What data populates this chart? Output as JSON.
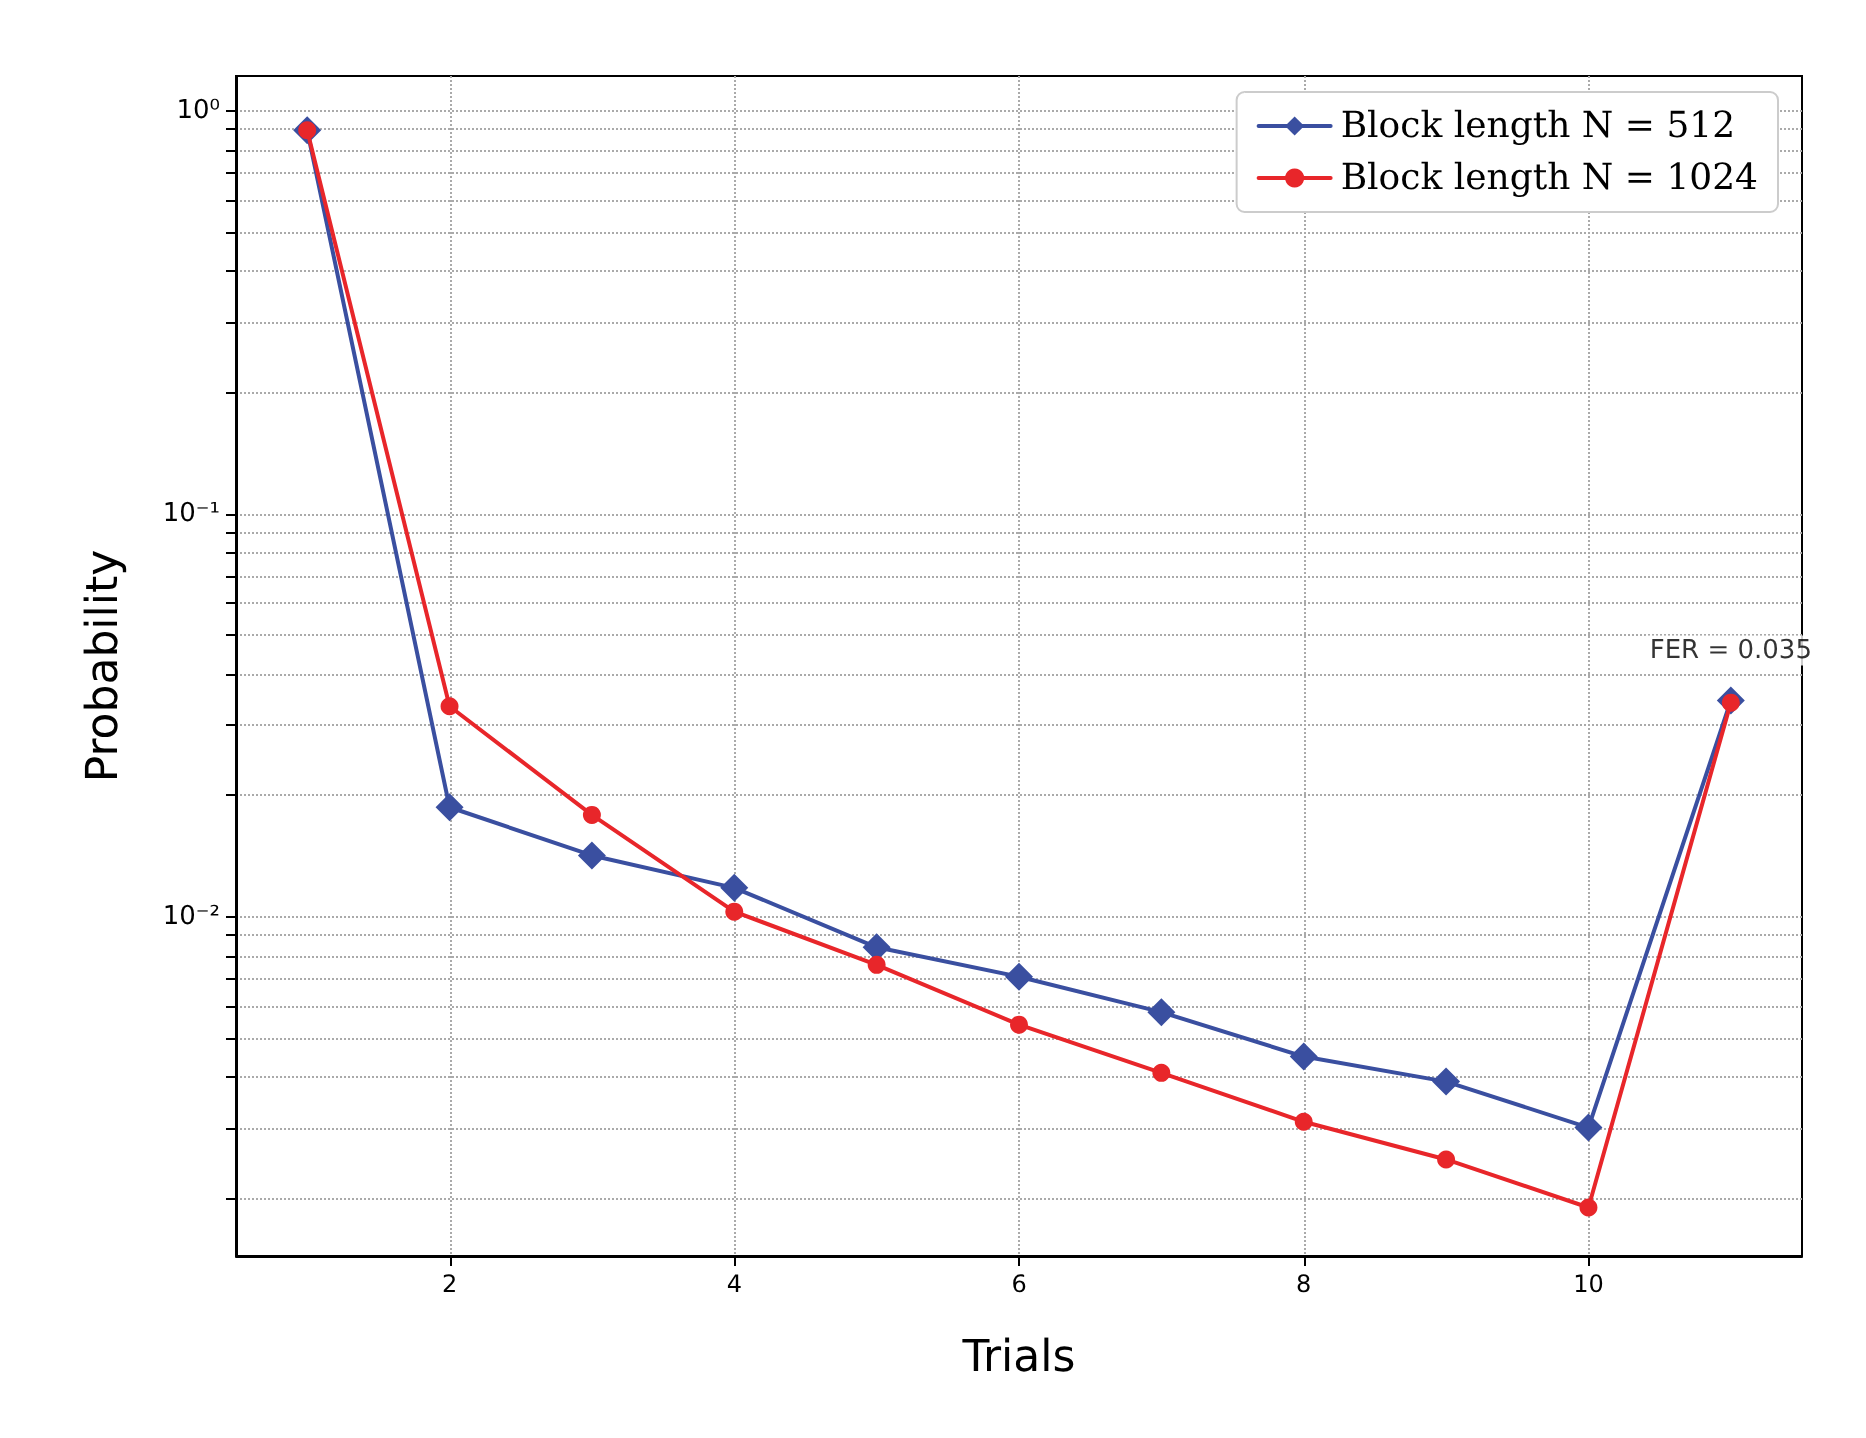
{
  "chart_data": {
    "type": "line",
    "xlabel": "Trials",
    "ylabel": "Probability",
    "log": "y",
    "grid": true,
    "legend": "top right",
    "line_style": "solid",
    "x": [
      1,
      2,
      3,
      4,
      5,
      6,
      7,
      8,
      9,
      10,
      11
    ],
    "xlim": [
      0.5,
      11.5
    ],
    "xticks": [
      2,
      4,
      6,
      8,
      10
    ],
    "ylim": [
      0.00144,
      1.22
    ],
    "yticks": [
      {
        "value": 0.002,
        "label": null
      },
      {
        "value": 0.003,
        "label": null
      },
      {
        "value": 0.004,
        "label": null
      },
      {
        "value": 0.005,
        "label": null
      },
      {
        "value": 0.006,
        "label": null
      },
      {
        "value": 0.007,
        "label": null
      },
      {
        "value": 0.008,
        "label": null
      },
      {
        "value": 0.009,
        "label": null
      },
      {
        "value": 0.01,
        "label": "10⁻²"
      },
      {
        "value": 0.02,
        "label": null
      },
      {
        "value": 0.03,
        "label": null
      },
      {
        "value": 0.04,
        "label": null
      },
      {
        "value": 0.05,
        "label": null
      },
      {
        "value": 0.06,
        "label": null
      },
      {
        "value": 0.07,
        "label": null
      },
      {
        "value": 0.08,
        "label": null
      },
      {
        "value": 0.09,
        "label": null
      },
      {
        "value": 0.1,
        "label": "10⁻¹"
      },
      {
        "value": 0.2,
        "label": null
      },
      {
        "value": 0.3,
        "label": null
      },
      {
        "value": 0.4,
        "label": null
      },
      {
        "value": 0.5,
        "label": null
      },
      {
        "value": 0.6,
        "label": null
      },
      {
        "value": 0.7,
        "label": null
      },
      {
        "value": 0.8,
        "label": null
      },
      {
        "value": 0.9,
        "label": null
      },
      {
        "value": 1,
        "label": "10⁰"
      }
    ],
    "series": [
      {
        "name": "Block length N = 512",
        "color": "#3a4fa0",
        "marker": "diamond",
        "values": [
          0.895,
          0.0187,
          0.0142,
          0.0118,
          0.0084,
          0.0071,
          0.0058,
          0.0045,
          0.0039,
          0.003,
          0.0344
        ]
      },
      {
        "name": "Block length N = 1024",
        "color": "#e8262a",
        "marker": "circle",
        "values": [
          0.895,
          0.0333,
          0.0179,
          0.0103,
          0.0076,
          0.0054,
          0.0041,
          0.0031,
          0.0025,
          0.0019,
          0.034
        ]
      }
    ],
    "annotations": [
      {
        "text": "FER = 0.035",
        "x": 11,
        "y": 0.035
      }
    ]
  }
}
